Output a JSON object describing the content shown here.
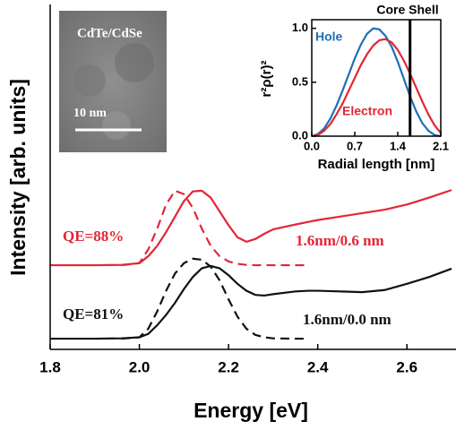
{
  "chart_data": [
    {
      "type": "line",
      "xlabel": "Energy [eV]",
      "ylabel": "Intensity [arb. units]",
      "x": [
        1.8,
        1.9,
        1.96,
        2.0,
        2.02,
        2.04,
        2.06,
        2.08,
        2.1,
        2.12,
        2.14,
        2.16,
        2.18,
        2.2,
        2.22,
        2.24,
        2.26,
        2.28,
        2.3,
        2.35,
        2.38,
        2.4,
        2.45,
        2.5,
        2.55,
        2.6,
        2.65,
        2.7
      ],
      "series": [
        {
          "color": "#111111",
          "dash": false,
          "values": [
            0.31,
            0.31,
            0.32,
            0.35,
            0.45,
            0.7,
            1.0,
            1.35,
            1.75,
            2.1,
            2.35,
            2.42,
            2.35,
            2.15,
            1.9,
            1.7,
            1.58,
            1.56,
            1.6,
            1.68,
            1.7,
            1.7,
            1.68,
            1.66,
            1.72,
            1.9,
            2.1,
            2.34
          ]
        },
        {
          "color": "#111111",
          "dash": true,
          "values": [
            null,
            null,
            0.31,
            0.35,
            0.6,
            1.1,
            1.7,
            2.2,
            2.5,
            2.63,
            2.6,
            2.4,
            2.0,
            1.45,
            0.95,
            0.6,
            0.42,
            0.35,
            0.32,
            0.31,
            0.31,
            null,
            null,
            null,
            null,
            null,
            null,
            null
          ]
        },
        {
          "color": "#e32636",
          "dash": false,
          "values": [
            2.44,
            2.44,
            2.45,
            2.5,
            2.7,
            3.0,
            3.4,
            3.85,
            4.3,
            4.58,
            4.6,
            4.4,
            4.0,
            3.6,
            3.25,
            3.12,
            3.2,
            3.35,
            3.48,
            3.62,
            3.7,
            3.75,
            3.85,
            3.95,
            4.05,
            4.2,
            4.4,
            4.62
          ]
        },
        {
          "color": "#e32636",
          "dash": true,
          "values": [
            null,
            null,
            2.44,
            2.5,
            2.9,
            3.5,
            4.2,
            4.6,
            4.5,
            4.1,
            3.5,
            3.0,
            2.7,
            2.55,
            2.48,
            2.45,
            2.44,
            2.44,
            2.44,
            2.44,
            2.44,
            null,
            null,
            null,
            null,
            null,
            null,
            null
          ]
        }
      ],
      "xlim": [
        1.8,
        2.7
      ],
      "xticks": [
        1.8,
        {
          "value": 2,
          "label": "2.0"
        },
        2.2,
        2.4,
        2.6
      ],
      "ylim": [
        0,
        10
      ],
      "annotations": [
        {
          "text": "QE=88%",
          "color": "#e32636"
        },
        {
          "text": "1.6nm/0.6 nm",
          "color": "#e32636"
        },
        {
          "text": "QE=81%",
          "color": "#111111"
        },
        {
          "text": "1.6nm/0.0 nm",
          "color": "#111111"
        }
      ]
    },
    {
      "type": "line",
      "xlabel": "Radial length [nm]",
      "ylabel": "r²ρ(r)²",
      "x": [
        0,
        0.1,
        0.2,
        0.3,
        0.4,
        0.5,
        0.6,
        0.7,
        0.8,
        0.9,
        1.0,
        1.1,
        1.2,
        1.3,
        1.4,
        1.5,
        1.6,
        1.7,
        1.8,
        1.9,
        2.0,
        2.1
      ],
      "series": [
        {
          "name": "Hole",
          "color": "#1f6fb5",
          "values": [
            0,
            0.02,
            0.07,
            0.16,
            0.28,
            0.42,
            0.57,
            0.72,
            0.85,
            0.95,
            1.0,
            0.99,
            0.93,
            0.83,
            0.69,
            0.53,
            0.37,
            0.23,
            0.12,
            0.05,
            0.01,
            0
          ]
        },
        {
          "name": "Electron",
          "color": "#e32636",
          "values": [
            0,
            0.01,
            0.05,
            0.11,
            0.2,
            0.3,
            0.42,
            0.54,
            0.66,
            0.76,
            0.84,
            0.89,
            0.9,
            0.87,
            0.8,
            0.7,
            0.58,
            0.45,
            0.32,
            0.2,
            0.1,
            0.03
          ]
        }
      ],
      "xlim": [
        0,
        2.1
      ],
      "xticks": [
        {
          "value": 0,
          "label": "0.0"
        },
        0.7,
        1.4,
        2.1
      ],
      "ylim": [
        0,
        1.08
      ],
      "yticks": [
        {
          "value": 0,
          "label": "0.0"
        },
        0.5,
        {
          "value": 1,
          "label": "1.0"
        }
      ],
      "vline": {
        "value": 1.6,
        "label": "Core Shell"
      }
    }
  ],
  "image": {
    "label": "CdTe/CdSe",
    "scale_bar": "10 nm"
  }
}
